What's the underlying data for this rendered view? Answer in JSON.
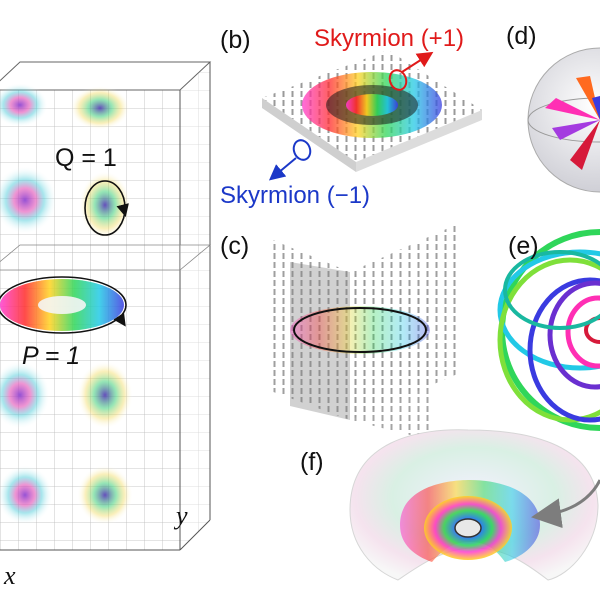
{
  "panels": {
    "a": {
      "q_label": "Q = 1",
      "p_label": "P = 1",
      "axis_x": "x",
      "axis_y": "y"
    },
    "b": {
      "tag": "(b)",
      "skyrmion_plus": "Skyrmion (+1)",
      "skyrmion_minus": "Skyrmion (−1)"
    },
    "c": {
      "tag": "(c)"
    },
    "d": {
      "tag": "(d)"
    },
    "e": {
      "tag": "(e)"
    },
    "f": {
      "tag": "(f)"
    }
  },
  "colors": {
    "plus": "#e01a1a",
    "minus": "#1b38c8"
  }
}
